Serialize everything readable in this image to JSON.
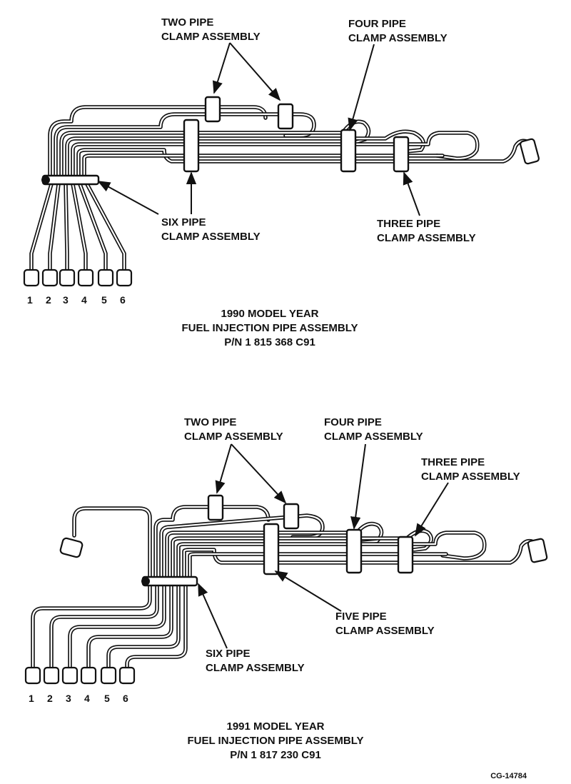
{
  "diagram_1990": {
    "labels": {
      "two_pipe": [
        "TWO PIPE",
        "CLAMP ASSEMBLY"
      ],
      "four_pipe": [
        "FOUR PIPE",
        "CLAMP ASSEMBLY"
      ],
      "six_pipe": [
        "SIX PIPE",
        "CLAMP ASSEMBLY"
      ],
      "three_pipe": [
        "THREE PIPE",
        "CLAMP ASSEMBLY"
      ]
    },
    "cylinder_numbers": [
      "1",
      "2",
      "3",
      "4",
      "5",
      "6"
    ],
    "caption": [
      "1990 MODEL YEAR",
      "FUEL INJECTION PIPE ASSEMBLY",
      "P/N 1 815 368 C91"
    ]
  },
  "diagram_1991": {
    "labels": {
      "two_pipe": [
        "TWO PIPE",
        "CLAMP ASSEMBLY"
      ],
      "four_pipe": [
        "FOUR PIPE",
        "CLAMP ASSEMBLY"
      ],
      "three_pipe": [
        "THREE PIPE",
        "CLAMP ASSEMBLY"
      ],
      "five_pipe": [
        "FIVE PIPE",
        "CLAMP ASSEMBLY"
      ],
      "six_pipe": [
        "SIX PIPE",
        "CLAMP ASSEMBLY"
      ]
    },
    "cylinder_numbers": [
      "1",
      "2",
      "3",
      "4",
      "5",
      "6"
    ],
    "caption": [
      "1991 MODEL YEAR",
      "FUEL INJECTION PIPE ASSEMBLY",
      "P/N 1 817 230 C91"
    ]
  },
  "figure_code": "CG-14784"
}
